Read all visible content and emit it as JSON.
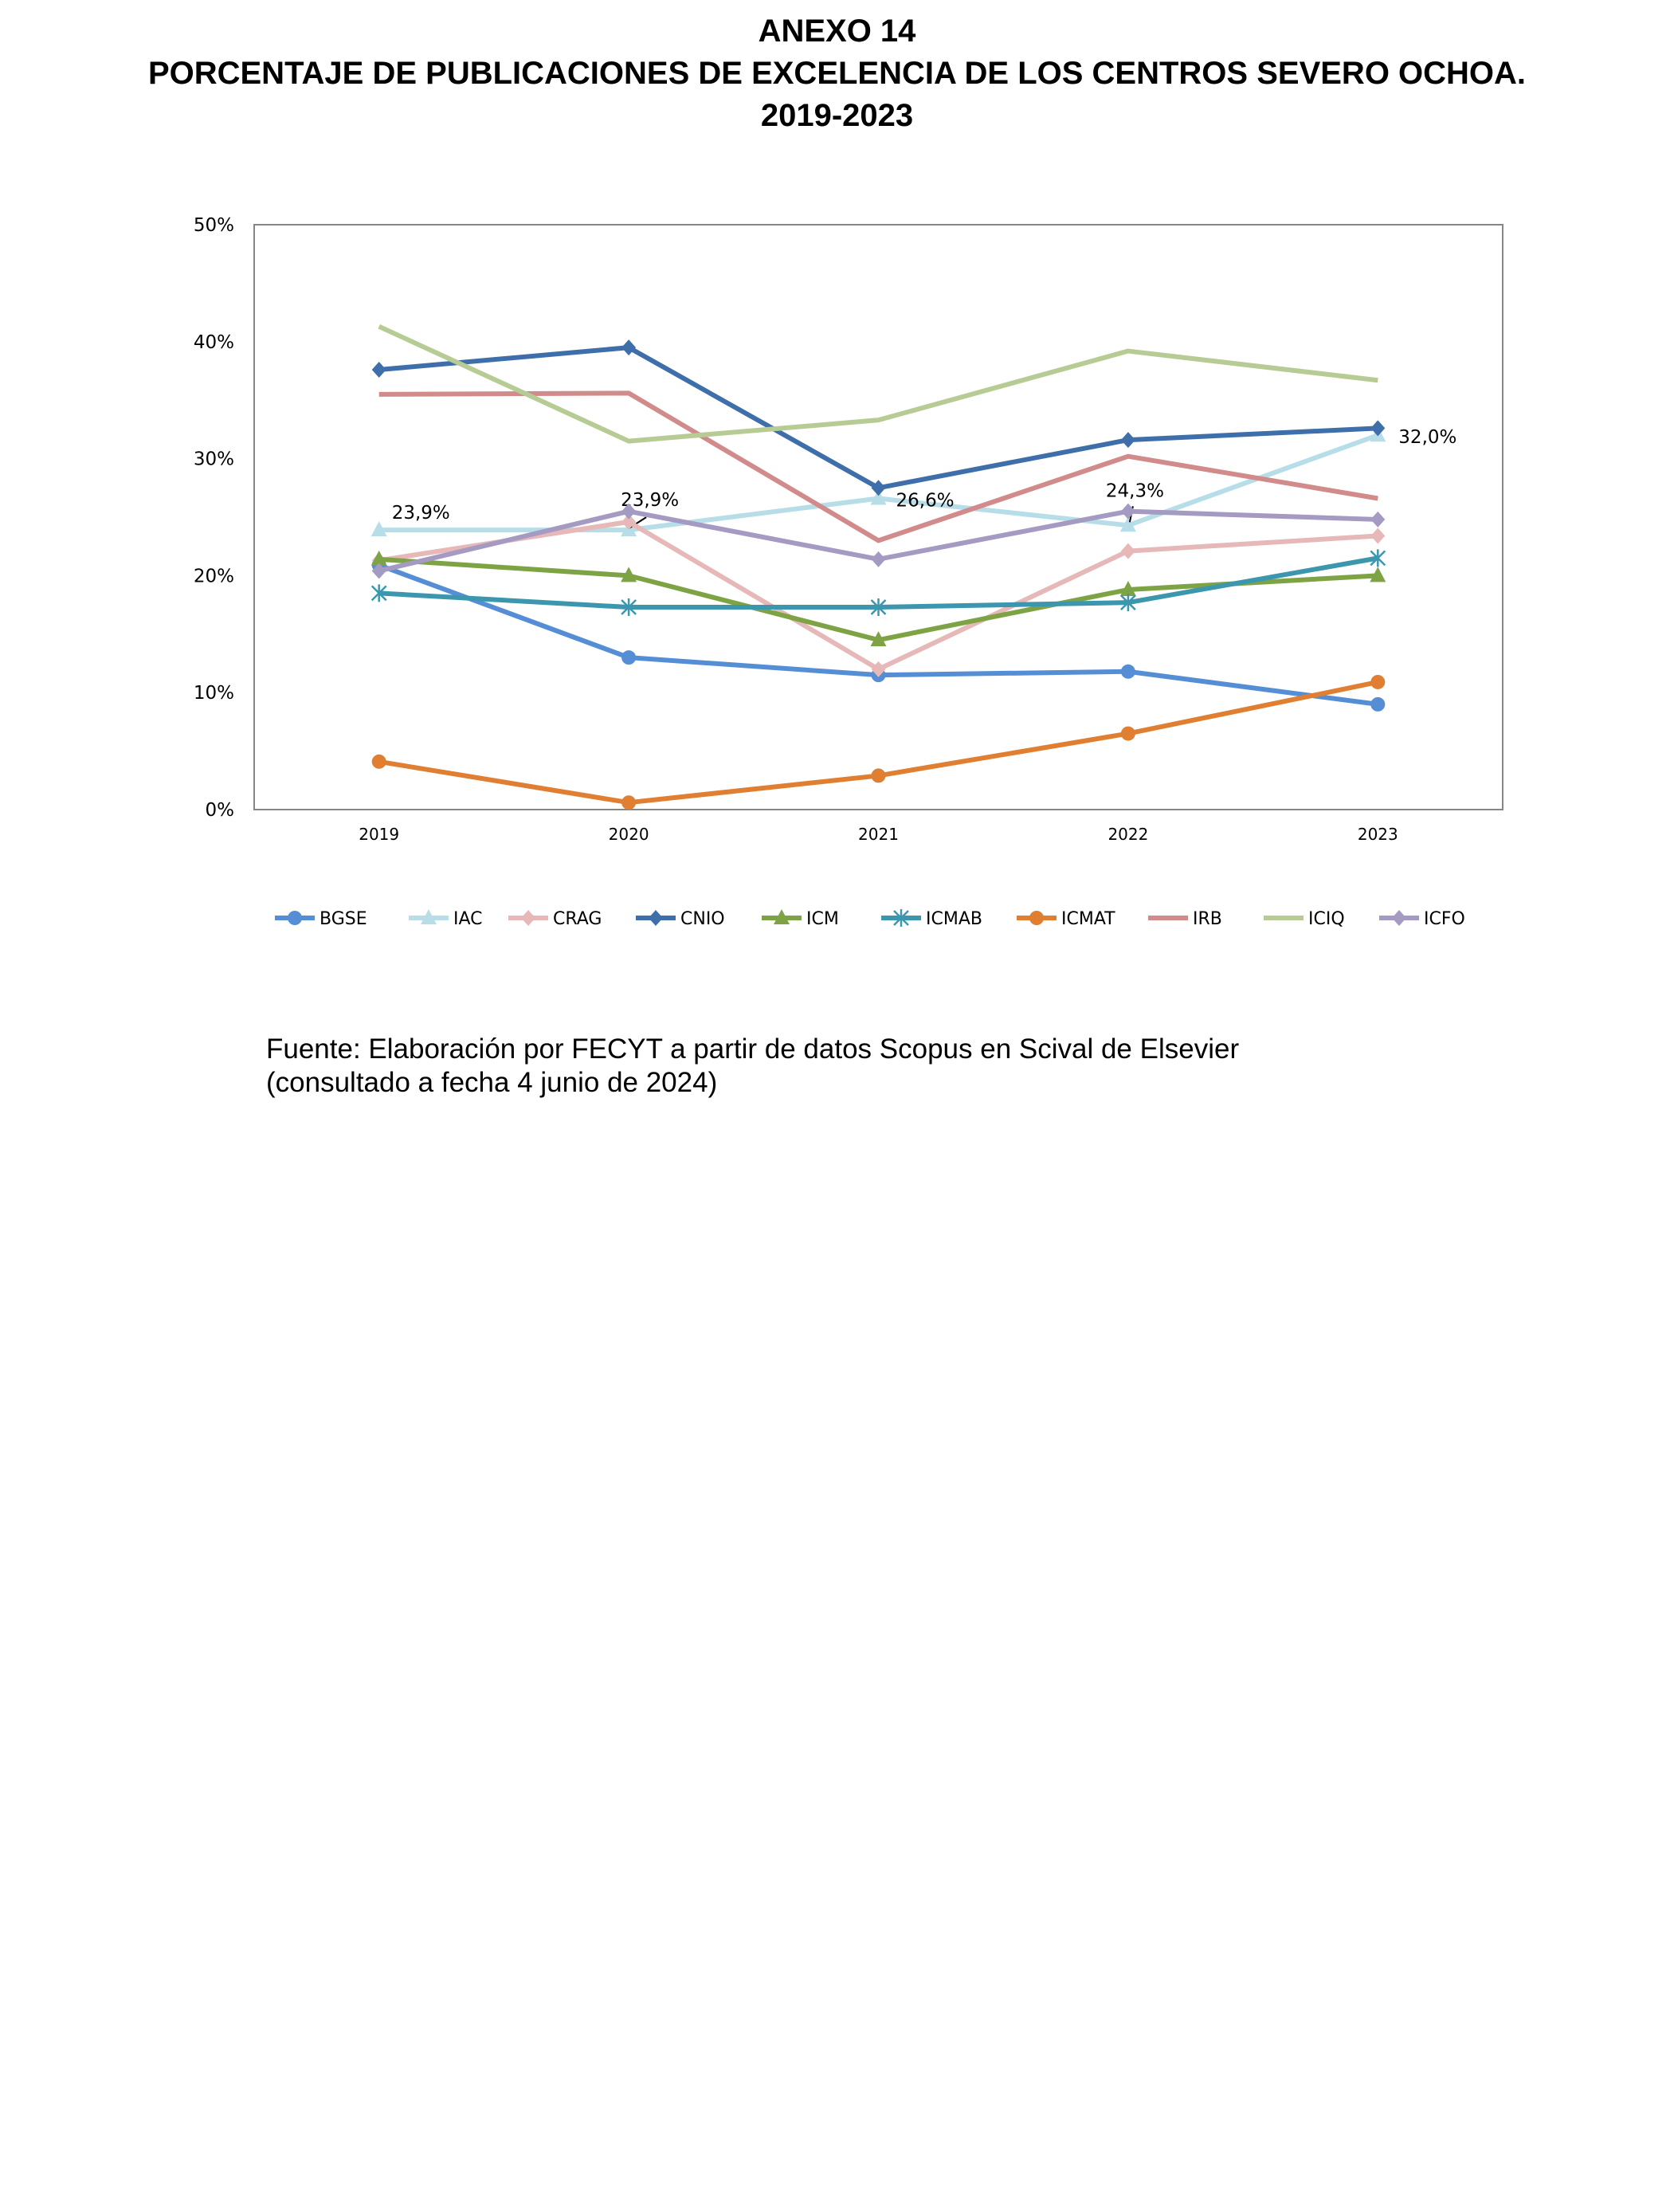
{
  "header": {
    "line1": "ANEXO 14",
    "line2": "PORCENTAJE DE PUBLICACIONES DE EXCELENCIA DE LOS CENTROS SEVERO OCHOA.",
    "line3": "2019-2023"
  },
  "source": {
    "line1": "Fuente: Elaboración por FECYT a partir de datos Scopus en Scival de Elsevier",
    "line2": "(consultado a fecha 4 junio de 2024)"
  },
  "chart_data": {
    "type": "line",
    "categories": [
      "2019",
      "2020",
      "2021",
      "2022",
      "2023"
    ],
    "ylim": [
      0,
      50
    ],
    "yticks": [
      "0%",
      "10%",
      "20%",
      "30%",
      "40%",
      "50%"
    ],
    "grid": false,
    "legend": "bottom",
    "series": [
      {
        "name": "BGSE",
        "color": "#558ED5",
        "marker": "circle",
        "values": [
          20.9,
          13.0,
          11.5,
          11.8,
          9.0
        ]
      },
      {
        "name": "IAC",
        "color": "#B7DEE8",
        "marker": "triangle",
        "values": [
          23.9,
          23.9,
          26.6,
          24.3,
          32.0
        ],
        "labels": [
          "23,9%",
          "23,9%",
          "26,6%",
          "24,3%",
          "32,0%"
        ]
      },
      {
        "name": "CRAG",
        "color": "#E6B9B8",
        "marker": "diamond",
        "values": [
          21.3,
          24.6,
          12.0,
          22.1,
          23.4
        ]
      },
      {
        "name": "CNIO",
        "color": "#3F6FAA",
        "marker": "diamond",
        "values": [
          37.6,
          39.5,
          27.5,
          31.6,
          32.6
        ]
      },
      {
        "name": "ICM",
        "color": "#7EA345",
        "marker": "triangle",
        "values": [
          21.4,
          20.0,
          14.5,
          18.8,
          20.0
        ]
      },
      {
        "name": "ICMAB",
        "color": "#3C97AE",
        "marker": "asterisk",
        "values": [
          18.5,
          17.3,
          17.3,
          17.7,
          21.5
        ]
      },
      {
        "name": "ICMAT",
        "color": "#E07E31",
        "marker": "circle",
        "values": [
          4.1,
          0.6,
          2.9,
          6.5,
          10.9
        ]
      },
      {
        "name": "IRB",
        "color": "#D18B8B",
        "marker": "none",
        "values": [
          35.5,
          35.6,
          23.0,
          30.2,
          26.6
        ]
      },
      {
        "name": "ICIQ",
        "color": "#B6CC94",
        "marker": "none",
        "values": [
          41.3,
          31.5,
          33.3,
          39.2,
          36.7
        ]
      },
      {
        "name": "ICFO",
        "color": "#A59AC2",
        "marker": "diamond",
        "values": [
          20.4,
          25.5,
          21.4,
          25.5,
          24.8
        ]
      }
    ]
  }
}
